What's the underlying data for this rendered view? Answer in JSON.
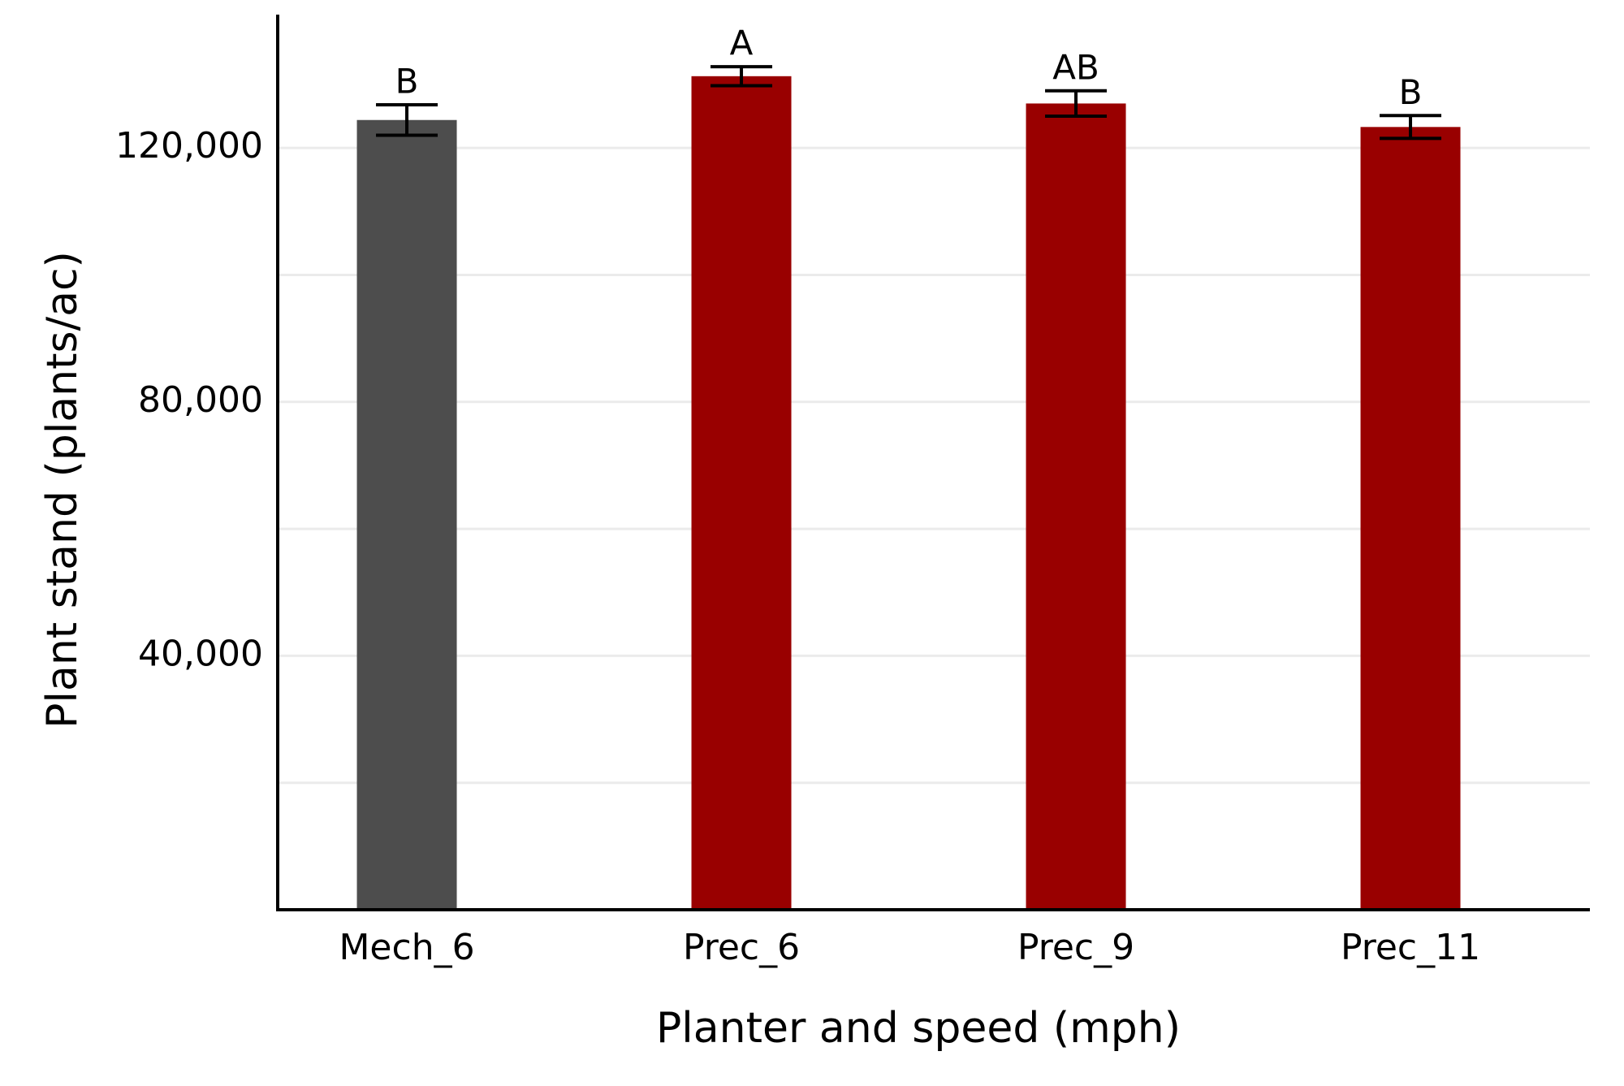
{
  "chart_data": {
    "type": "bar",
    "x_label": "Planter and speed (mph)",
    "y_label": "Plant stand (plants/ac)",
    "categories": [
      "Mech_6",
      "Prec_6",
      "Prec_9",
      "Prec_11"
    ],
    "values": [
      124400,
      131300,
      127000,
      123300
    ],
    "errors": [
      2400,
      1500,
      2000,
      1800
    ],
    "letters": [
      "B",
      "A",
      "AB",
      "B"
    ],
    "colors": [
      "#4d4d4d",
      "#990000",
      "#990000",
      "#990000"
    ],
    "ylim": [
      0,
      141000
    ],
    "yticks": [
      {
        "value": 40000,
        "label": "40,000"
      },
      {
        "value": 80000,
        "label": "80,000"
      },
      {
        "value": 120000,
        "label": "120,000"
      }
    ],
    "minor_yticks": [
      20000,
      60000,
      100000
    ],
    "grid": true
  }
}
